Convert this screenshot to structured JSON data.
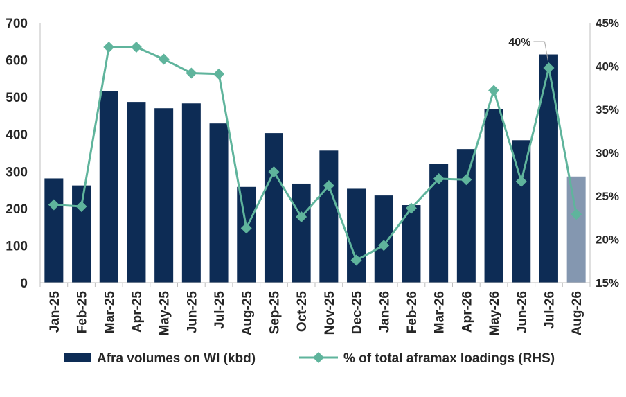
{
  "chart_data": {
    "type": "bar+line",
    "categories": [
      "Jan-25",
      "Feb-25",
      "Mar-25",
      "Apr-25",
      "May-25",
      "Jun-25",
      "Jul-25",
      "Aug-25",
      "Sep-25",
      "Oct-25",
      "Nov-25",
      "Dec-25",
      "Jan-26",
      "Feb-26",
      "Mar-26",
      "Apr-26",
      "May-26",
      "Jun-26",
      "Jul-26",
      "Aug-26"
    ],
    "series": [
      {
        "name": "Afra volumes on WI (kbd)",
        "type": "bar",
        "axis": "left",
        "values": [
          281,
          262,
          517,
          487,
          470,
          483,
          429,
          258,
          403,
          267,
          356,
          253,
          235,
          209,
          320,
          360,
          467,
          384,
          615,
          286
        ],
        "colors": [
          "#0d2c55",
          "#0d2c55",
          "#0d2c55",
          "#0d2c55",
          "#0d2c55",
          "#0d2c55",
          "#0d2c55",
          "#0d2c55",
          "#0d2c55",
          "#0d2c55",
          "#0d2c55",
          "#0d2c55",
          "#0d2c55",
          "#0d2c55",
          "#0d2c55",
          "#0d2c55",
          "#0d2c55",
          "#0d2c55",
          "#0d2c55",
          "#8497b0"
        ]
      },
      {
        "name": "% of total aframax loadings (RHS)",
        "type": "line",
        "axis": "right",
        "values": [
          24.0,
          23.8,
          42.2,
          42.2,
          40.8,
          39.2,
          39.1,
          21.3,
          27.8,
          22.6,
          26.2,
          17.6,
          19.3,
          23.6,
          27.0,
          26.9,
          37.2,
          26.7,
          39.8,
          22.9
        ],
        "color": "#5fb49c"
      }
    ],
    "y_left": {
      "min": 0,
      "max": 700,
      "ticks": [
        "0",
        "100",
        "200",
        "300",
        "400",
        "500",
        "600",
        "700"
      ]
    },
    "y_right": {
      "min": 15,
      "max": 45,
      "ticks": [
        "15%",
        "20%",
        "25%",
        "30%",
        "35%",
        "40%",
        "45%"
      ]
    },
    "annotation": {
      "text": "40%",
      "category": "Jul-26"
    },
    "grid": false,
    "legend_position": "bottom"
  },
  "legend": {
    "bar_label": "Afra volumes on WI (kbd)",
    "line_label": "% of total aframax loadings (RHS)"
  },
  "annotation_text": "40%"
}
